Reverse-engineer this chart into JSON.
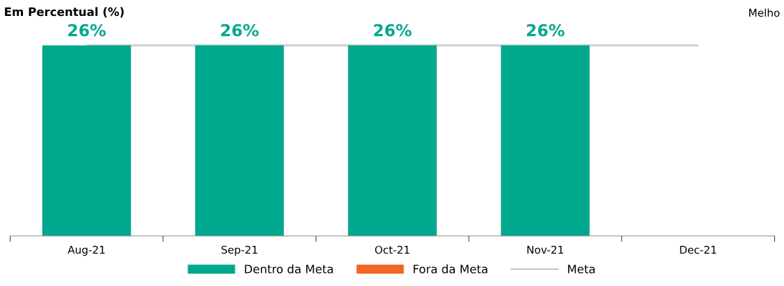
{
  "chart_data": {
    "type": "bar",
    "title": "Em Percentual (%)",
    "annotations": [
      "Melho"
    ],
    "categories": [
      "Aug-21",
      "Sep-21",
      "Oct-21",
      "Nov-21",
      "Dec-21"
    ],
    "series": [
      {
        "name": "Dentro da Meta",
        "color": "#00a88e",
        "values": [
          26,
          26,
          26,
          26,
          null
        ],
        "value_labels": [
          "26%",
          "26%",
          "26%",
          "26%",
          null
        ]
      },
      {
        "name": "Fora da Meta",
        "color": "#f26522",
        "values": [
          null,
          null,
          null,
          null,
          null
        ]
      }
    ],
    "ref_lines": [
      {
        "axis": "y",
        "value": 26,
        "label": "Meta",
        "color": "#d0d0d0",
        "line_style": "solid"
      }
    ],
    "legend": "bottom",
    "tick_labels": "x",
    "grid": false
  }
}
